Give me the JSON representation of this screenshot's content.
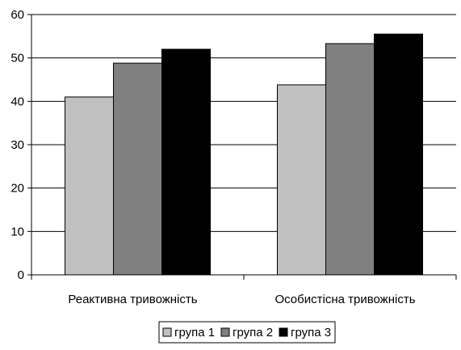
{
  "chart_data": {
    "type": "bar",
    "categories": [
      "Реактивна тривожність",
      "Особистісна тривожність"
    ],
    "series": [
      {
        "name": "група 1",
        "values": [
          41,
          43.8
        ],
        "color": "#c0c0c0"
      },
      {
        "name": "група 2",
        "values": [
          48.8,
          53.3
        ],
        "color": "#808080"
      },
      {
        "name": "група 3",
        "values": [
          52,
          55.5
        ],
        "color": "#000000"
      }
    ],
    "yticks": [
      0,
      10,
      20,
      30,
      40,
      50,
      60
    ],
    "ylim": [
      0,
      60
    ],
    "grid": true,
    "legend": "bottom",
    "title": "",
    "xlabel": "",
    "ylabel": ""
  }
}
